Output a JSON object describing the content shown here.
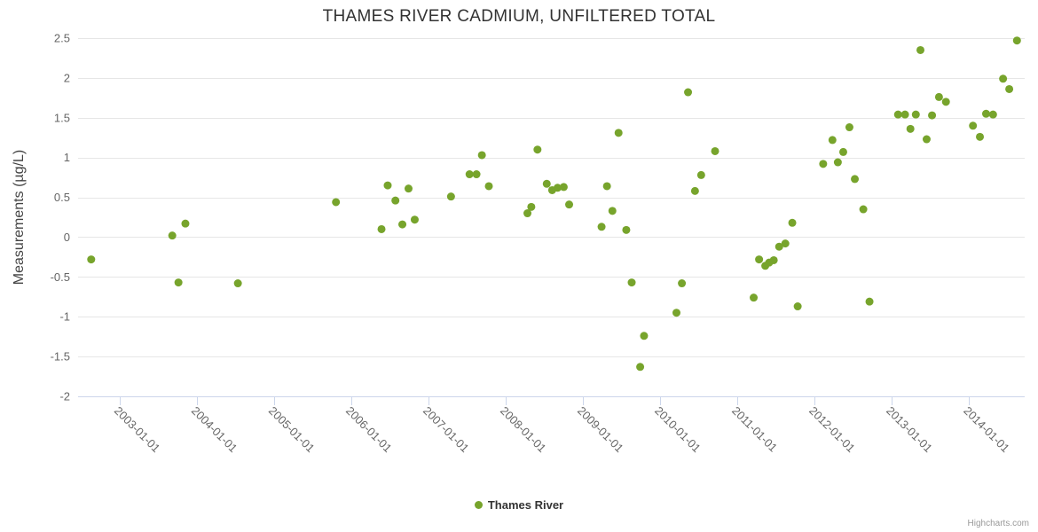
{
  "credits": "Highcharts.com",
  "chart_data": {
    "type": "scatter",
    "title": "THAMES RIVER CADMIUM, UNFILTERED TOTAL",
    "xlabel": "",
    "ylabel": "Measurements (µg/L)",
    "xlim": [
      2002.46,
      2014.72
    ],
    "ylim": [
      -2,
      2.5
    ],
    "grid": "horizontal",
    "legend_position": "bottom-center",
    "y_ticks": [
      2.5,
      2,
      1.5,
      1,
      0.5,
      0,
      -0.5,
      -1,
      -1.5,
      -2
    ],
    "x_ticks": [
      {
        "pos": 2003,
        "label": "2003-01-01"
      },
      {
        "pos": 2004,
        "label": "2004-01-01"
      },
      {
        "pos": 2005,
        "label": "2005-01-01"
      },
      {
        "pos": 2006,
        "label": "2006-01-01"
      },
      {
        "pos": 2007,
        "label": "2007-01-01"
      },
      {
        "pos": 2008,
        "label": "2008-01-01"
      },
      {
        "pos": 2009,
        "label": "2009-01-01"
      },
      {
        "pos": 2010,
        "label": "2010-01-01"
      },
      {
        "pos": 2011,
        "label": "2011-01-01"
      },
      {
        "pos": 2012,
        "label": "2012-01-01"
      },
      {
        "pos": 2013,
        "label": "2013-01-01"
      },
      {
        "pos": 2014,
        "label": "2014-01-01"
      }
    ],
    "series": [
      {
        "name": "Thames River",
        "color": "#77a42c",
        "points": [
          [
            2002.63,
            -0.28
          ],
          [
            2003.68,
            0.02
          ],
          [
            2003.76,
            -0.57
          ],
          [
            2003.85,
            0.17
          ],
          [
            2004.53,
            -0.58
          ],
          [
            2005.8,
            0.44
          ],
          [
            2006.39,
            0.1
          ],
          [
            2006.47,
            0.65
          ],
          [
            2006.57,
            0.46
          ],
          [
            2006.66,
            0.16
          ],
          [
            2006.74,
            0.61
          ],
          [
            2006.82,
            0.22
          ],
          [
            2007.29,
            0.51
          ],
          [
            2007.53,
            0.79
          ],
          [
            2007.62,
            0.79
          ],
          [
            2007.69,
            1.03
          ],
          [
            2007.78,
            0.64
          ],
          [
            2008.28,
            0.3
          ],
          [
            2008.33,
            0.38
          ],
          [
            2008.41,
            1.1
          ],
          [
            2008.53,
            0.67
          ],
          [
            2008.6,
            0.59
          ],
          [
            2008.67,
            0.62
          ],
          [
            2008.75,
            0.63
          ],
          [
            2008.82,
            0.41
          ],
          [
            2009.24,
            0.13
          ],
          [
            2009.31,
            0.64
          ],
          [
            2009.38,
            0.33
          ],
          [
            2009.46,
            1.31
          ],
          [
            2009.56,
            0.09
          ],
          [
            2009.63,
            -0.57
          ],
          [
            2009.74,
            -1.63
          ],
          [
            2009.79,
            -1.24
          ],
          [
            2010.21,
            -0.95
          ],
          [
            2010.28,
            -0.58
          ],
          [
            2010.36,
            1.82
          ],
          [
            2010.45,
            0.58
          ],
          [
            2010.53,
            0.78
          ],
          [
            2010.71,
            1.08
          ],
          [
            2011.21,
            -0.76
          ],
          [
            2011.28,
            -0.28
          ],
          [
            2011.36,
            -0.36
          ],
          [
            2011.41,
            -0.32
          ],
          [
            2011.47,
            -0.29
          ],
          [
            2011.54,
            -0.12
          ],
          [
            2011.62,
            -0.08
          ],
          [
            2011.71,
            0.18
          ],
          [
            2011.78,
            -0.87
          ],
          [
            2012.11,
            0.92
          ],
          [
            2012.23,
            1.22
          ],
          [
            2012.3,
            0.94
          ],
          [
            2012.37,
            1.07
          ],
          [
            2012.45,
            1.38
          ],
          [
            2012.52,
            0.73
          ],
          [
            2012.63,
            0.35
          ],
          [
            2012.71,
            -0.81
          ],
          [
            2013.08,
            1.54
          ],
          [
            2013.17,
            1.54
          ],
          [
            2013.24,
            1.36
          ],
          [
            2013.31,
            1.54
          ],
          [
            2013.37,
            2.35
          ],
          [
            2013.45,
            1.23
          ],
          [
            2013.52,
            1.53
          ],
          [
            2013.61,
            1.76
          ],
          [
            2013.7,
            1.7
          ],
          [
            2014.05,
            1.4
          ],
          [
            2014.14,
            1.26
          ],
          [
            2014.22,
            1.55
          ],
          [
            2014.31,
            1.54
          ],
          [
            2014.44,
            1.99
          ],
          [
            2014.52,
            1.86
          ],
          [
            2014.62,
            2.47
          ]
        ]
      }
    ]
  }
}
